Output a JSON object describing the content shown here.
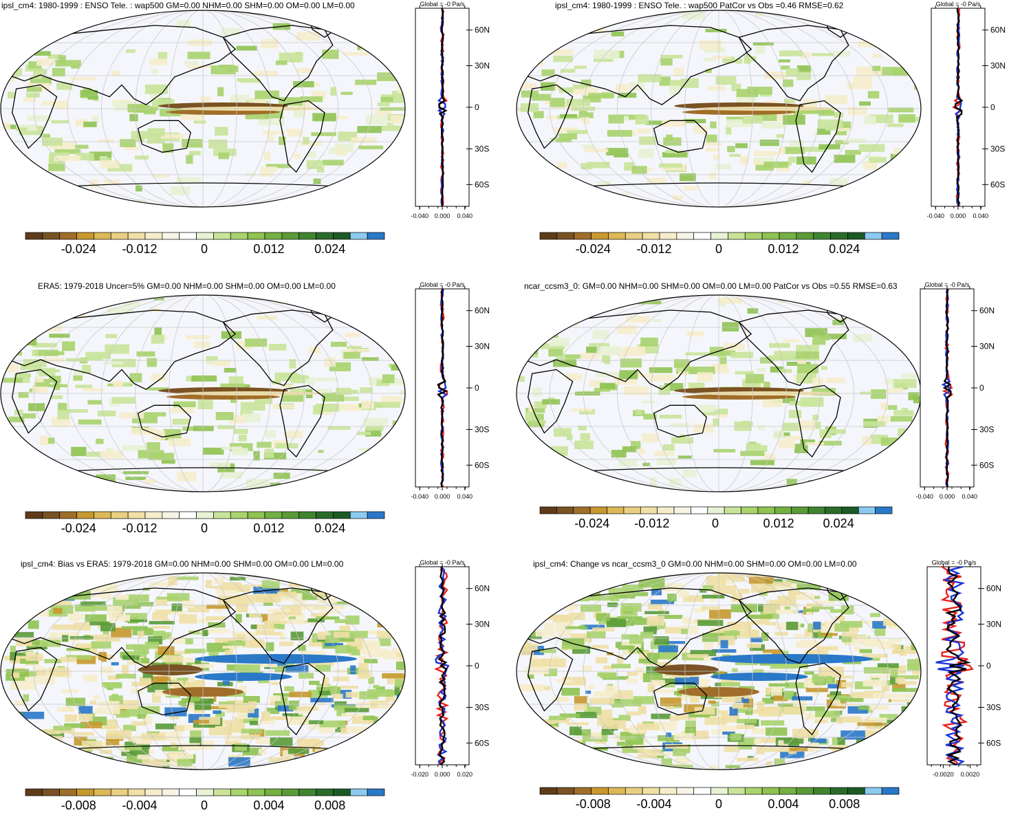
{
  "colorbar_colors": [
    "#5e3c1a",
    "#7a5224",
    "#a06e2a",
    "#c7992f",
    "#dcb857",
    "#e8cf83",
    "#f0e0a6",
    "#f6edcc",
    "#f7f3e6",
    "#ffffff",
    "#e8f2d4",
    "#c9e49a",
    "#a9d36d",
    "#8fc352",
    "#74b043",
    "#5a9b38",
    "#3f8530",
    "#2a6b2a",
    "#1c5a25",
    "#8ccaf0",
    "#2a78c8"
  ],
  "panels": [
    {
      "title": "ipsl_cm4: 1980-1999 : ENSO Tele. : wap500 GM=0.00 NHM=0.00 SHM=0.00 OM=0.00 LM=0.00",
      "colorbar_labels": [
        "-0.024",
        "-0.012",
        "0",
        "0.012",
        "0.024"
      ],
      "profile": {
        "title": "Global = -0 Pa/s",
        "x_ticks": [
          "-0.040",
          "0.000",
          "0.040"
        ],
        "y_ticks": [
          "60N",
          "30N",
          "0",
          "30S",
          "60S"
        ]
      }
    },
    {
      "title": "ipsl_cm4: 1980-1999 : ENSO Tele. : wap500 PatCor vs Obs =0.46 RMSE=0.62",
      "colorbar_labels": [
        "-0.024",
        "-0.012",
        "0",
        "0.012",
        "0.024"
      ],
      "profile": {
        "title": "Global = -0 Pa/s",
        "x_ticks": [
          "-0.040",
          "0.000",
          "0.040"
        ],
        "y_ticks": [
          "60N",
          "30N",
          "0",
          "30S",
          "60S"
        ]
      }
    },
    {
      "title": "ERA5: 1979-2018 Uncer=5% GM=0.00 NHM=0.00 SHM=0.00 OM=0.00 LM=0.00",
      "colorbar_labels": [
        "-0.024",
        "-0.012",
        "0",
        "0.012",
        "0.024"
      ],
      "profile": {
        "title": "Global = -0 Pa/s",
        "x_ticks": [
          "-0.040",
          "0.000",
          "0.040"
        ],
        "y_ticks": [
          "60N",
          "30N",
          "0",
          "30S",
          "60S"
        ]
      }
    },
    {
      "title": "ncar_ccsm3_0: GM=0.00 NHM=0.00 SHM=0.00 OM=0.00 LM=0.00 PatCor vs Obs =0.55 RMSE=0.63",
      "colorbar_labels": [
        "-0.024",
        "-0.012",
        "0",
        "0.012",
        "0.024"
      ],
      "profile": {
        "title": "Global = -0 Pa/s",
        "x_ticks": [
          "-0.040",
          "0.000",
          "0.040"
        ],
        "y_ticks": [
          "60N",
          "30N",
          "0",
          "30S",
          "60S"
        ]
      }
    },
    {
      "title": "ipsl_cm4: Bias vs ERA5: 1979-2018 GM=0.00 NHM=0.00 SHM=0.00 OM=0.00 LM=0.00",
      "colorbar_labels": [
        "-0.008",
        "-0.004",
        "0",
        "0.004",
        "0.008"
      ],
      "profile": {
        "title": "Global = -0 Pa/s",
        "x_ticks": [
          "-0.020",
          "0.000",
          "0.020"
        ],
        "y_ticks": [
          "60N",
          "30N",
          "0",
          "30S",
          "60S"
        ]
      }
    },
    {
      "title": "ipsl_cm4: Change vs ncar_ccsm3_0 GM=0.00 NHM=0.00 SHM=0.00 OM=0.00 LM=0.00",
      "colorbar_labels": [
        "-0.008",
        "-0.004",
        "0",
        "0.004",
        "0.008"
      ],
      "profile": {
        "title": "Global = -0 Pa/s",
        "x_ticks": [
          "-0.0020",
          "0.0020"
        ],
        "y_ticks": [
          "60N",
          "30N",
          "0",
          "30S",
          "60S"
        ]
      }
    }
  ]
}
